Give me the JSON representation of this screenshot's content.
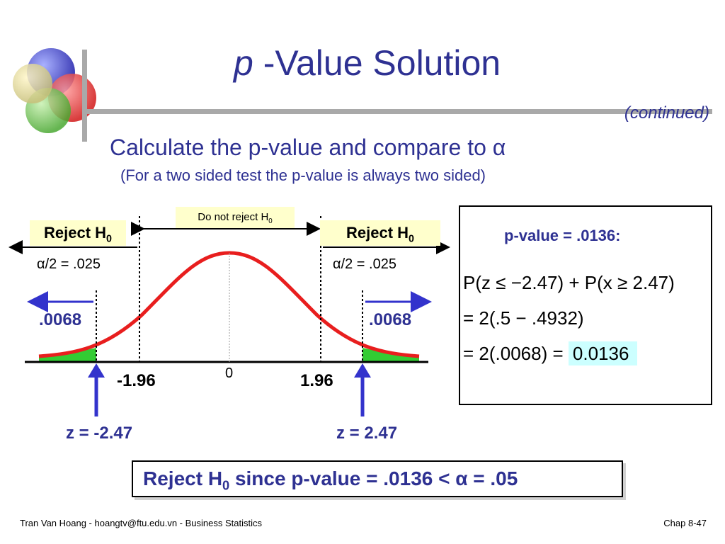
{
  "slide": {
    "title_italic": "p",
    "title_rest": " -Value Solution",
    "continued": "(continued)",
    "subtitle": "Calculate the p-value and compare to α",
    "subnote": "(For a two sided test the p-value is always two sided)"
  },
  "diagram": {
    "do_not_reject": "Do not reject H",
    "do_not_reject_sub": "0",
    "reject_left": "Reject H",
    "reject_right": "Reject H",
    "reject_sub": "0",
    "half_alpha_left": "α/2 = .025",
    "half_alpha_right": "α/2 = .025",
    "tail_p_left": ".0068",
    "tail_p_right": ".0068",
    "crit_left": "-1.96",
    "crit_right": "1.96",
    "zero": "0",
    "z_left": "z = -2.47",
    "z_right": "z = 2.47"
  },
  "pvalue_box": {
    "heading": "p-value = .0136:",
    "eq1": "P(z ≤ −2.47) + P(x ≥ 2.47)",
    "eq2": "= 2(.5 − .4932)",
    "eq3_prefix": "= 2(.0068) = ",
    "eq3_result": "0.0136"
  },
  "conclusion": {
    "part1": "Reject H",
    "sub": "0",
    "part2": " since p-value = .0136 < α = .05"
  },
  "footer": {
    "left": "Tran Van Hoang - hoangtv@ftu.edu.vn - Business Statistics",
    "right": "Chap 8-47"
  },
  "colors": {
    "title_blue": "#2e3192",
    "curve_red": "#e81e1e",
    "tail_green": "#33cc33",
    "arrow_blue": "#3333cc",
    "highlight_cyan": "#ccffff",
    "label_yellow": "#ffffcc"
  }
}
